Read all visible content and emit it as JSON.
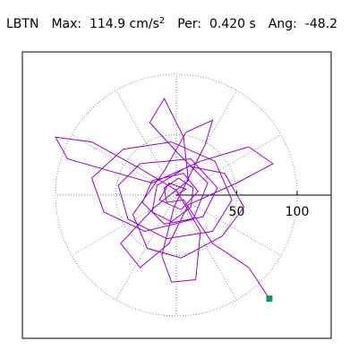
{
  "header": {
    "station": "LBTN",
    "max_label": "Max:",
    "max_value": "114.9 cm/s",
    "max_exp": "2",
    "per_label": "Per:",
    "per_value": "0.420 s",
    "ang_label": "Ang:",
    "ang_value": "-48.2"
  },
  "colors": {
    "trace": "#9900cc",
    "marker": "#009966",
    "grid": "#888888",
    "frame": "#000000"
  },
  "chart_data": {
    "type": "scatter",
    "title": "",
    "xlabel": "",
    "ylabel": "",
    "radial_ticks": [
      50,
      100
    ],
    "radial_tick_labels": [
      "50",
      "100"
    ],
    "range": [
      -130,
      130
    ],
    "grid": "polar",
    "grid_rings": [
      50,
      100
    ],
    "grid_spoke_angles_deg": [
      0,
      30,
      60,
      90,
      120,
      150,
      180,
      210,
      240,
      270,
      300,
      330
    ],
    "axis_line_angle_deg": 0,
    "peak_point": {
      "x": 77,
      "y": -85.7
    },
    "trajectory": [
      {
        "x": 0,
        "y": 0
      },
      {
        "x": 8,
        "y": 5
      },
      {
        "x": -6,
        "y": 10
      },
      {
        "x": -14,
        "y": -4
      },
      {
        "x": 4,
        "y": -12
      },
      {
        "x": 18,
        "y": 3
      },
      {
        "x": 6,
        "y": 18
      },
      {
        "x": -20,
        "y": 12
      },
      {
        "x": -28,
        "y": -6
      },
      {
        "x": -10,
        "y": -24
      },
      {
        "x": 22,
        "y": -18
      },
      {
        "x": 34,
        "y": 6
      },
      {
        "x": 12,
        "y": 30
      },
      {
        "x": -30,
        "y": 26
      },
      {
        "x": -48,
        "y": 8
      },
      {
        "x": -40,
        "y": -20
      },
      {
        "x": -8,
        "y": -36
      },
      {
        "x": 30,
        "y": -30
      },
      {
        "x": 46,
        "y": -4
      },
      {
        "x": 32,
        "y": 28
      },
      {
        "x": -4,
        "y": 44
      },
      {
        "x": -44,
        "y": 38
      },
      {
        "x": -70,
        "y": 14
      },
      {
        "x": -60,
        "y": -14
      },
      {
        "x": -26,
        "y": -30
      },
      {
        "x": 14,
        "y": -20
      },
      {
        "x": 26,
        "y": 10
      },
      {
        "x": 2,
        "y": 34
      },
      {
        "x": -22,
        "y": 60
      },
      {
        "x": -10,
        "y": 80
      },
      {
        "x": 6,
        "y": 48
      },
      {
        "x": 10,
        "y": 12
      },
      {
        "x": -18,
        "y": -10
      },
      {
        "x": -46,
        "y": -40
      },
      {
        "x": -30,
        "y": -60
      },
      {
        "x": -6,
        "y": -40
      },
      {
        "x": 10,
        "y": -8
      },
      {
        "x": 50,
        "y": 10
      },
      {
        "x": 80,
        "y": 26
      },
      {
        "x": 60,
        "y": 40
      },
      {
        "x": 20,
        "y": 28
      },
      {
        "x": -20,
        "y": 10
      },
      {
        "x": -90,
        "y": 30
      },
      {
        "x": -100,
        "y": 48
      },
      {
        "x": -70,
        "y": 44
      },
      {
        "x": -30,
        "y": 22
      },
      {
        "x": 0,
        "y": 4
      },
      {
        "x": 20,
        "y": -30
      },
      {
        "x": 16,
        "y": -70
      },
      {
        "x": -4,
        "y": -72
      },
      {
        "x": -12,
        "y": -50
      },
      {
        "x": -2,
        "y": -10
      },
      {
        "x": 24,
        "y": 42
      },
      {
        "x": 30,
        "y": 62
      },
      {
        "x": 8,
        "y": 52
      },
      {
        "x": -10,
        "y": 20
      },
      {
        "x": -36,
        "y": -16
      },
      {
        "x": -24,
        "y": -44
      },
      {
        "x": 4,
        "y": -52
      },
      {
        "x": 38,
        "y": -34
      },
      {
        "x": 56,
        "y": -10
      },
      {
        "x": 40,
        "y": 18
      },
      {
        "x": 10,
        "y": 24
      },
      {
        "x": -16,
        "y": 8
      },
      {
        "x": -20,
        "y": -14
      },
      {
        "x": -4,
        "y": -22
      },
      {
        "x": 12,
        "y": -10
      },
      {
        "x": 14,
        "y": 6
      },
      {
        "x": 2,
        "y": 14
      },
      {
        "x": -10,
        "y": 6
      },
      {
        "x": -8,
        "y": -6
      },
      {
        "x": 6,
        "y": -4
      },
      {
        "x": 30,
        "y": -40
      },
      {
        "x": 60,
        "y": -60
      },
      {
        "x": 77,
        "y": -85.7
      }
    ]
  }
}
